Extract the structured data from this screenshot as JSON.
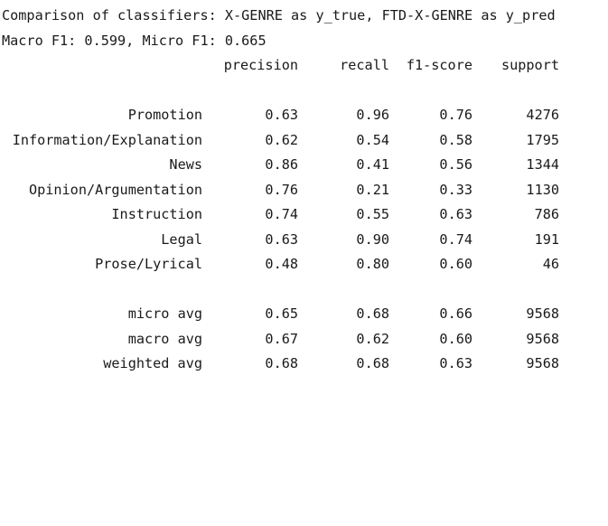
{
  "output": {
    "title": "Comparison of classifiers: X-GENRE as y_true, FTD-X-GENRE as y_pred",
    "scores": "Macro F1: 0.599, Micro F1: 0.665",
    "columns": [
      "precision",
      "recall",
      "f1-score",
      "support"
    ],
    "rows": [
      {
        "label": "Promotion",
        "precision": "0.63",
        "recall": "0.96",
        "f1": "0.76",
        "support": "4276"
      },
      {
        "label": "Information/Explanation",
        "precision": "0.62",
        "recall": "0.54",
        "f1": "0.58",
        "support": "1795"
      },
      {
        "label": "News",
        "precision": "0.86",
        "recall": "0.41",
        "f1": "0.56",
        "support": "1344"
      },
      {
        "label": "Opinion/Argumentation",
        "precision": "0.76",
        "recall": "0.21",
        "f1": "0.33",
        "support": "1130"
      },
      {
        "label": "Instruction",
        "precision": "0.74",
        "recall": "0.55",
        "f1": "0.63",
        "support": "786"
      },
      {
        "label": "Legal",
        "precision": "0.63",
        "recall": "0.90",
        "f1": "0.74",
        "support": "191"
      },
      {
        "label": "Prose/Lyrical",
        "precision": "0.48",
        "recall": "0.80",
        "f1": "0.60",
        "support": "46"
      }
    ],
    "averages": [
      {
        "label": "micro avg",
        "precision": "0.65",
        "recall": "0.68",
        "f1": "0.66",
        "support": "9568"
      },
      {
        "label": "macro avg",
        "precision": "0.67",
        "recall": "0.62",
        "f1": "0.60",
        "support": "9568"
      },
      {
        "label": "weighted avg",
        "precision": "0.68",
        "recall": "0.68",
        "f1": "0.63",
        "support": "9568"
      }
    ]
  }
}
